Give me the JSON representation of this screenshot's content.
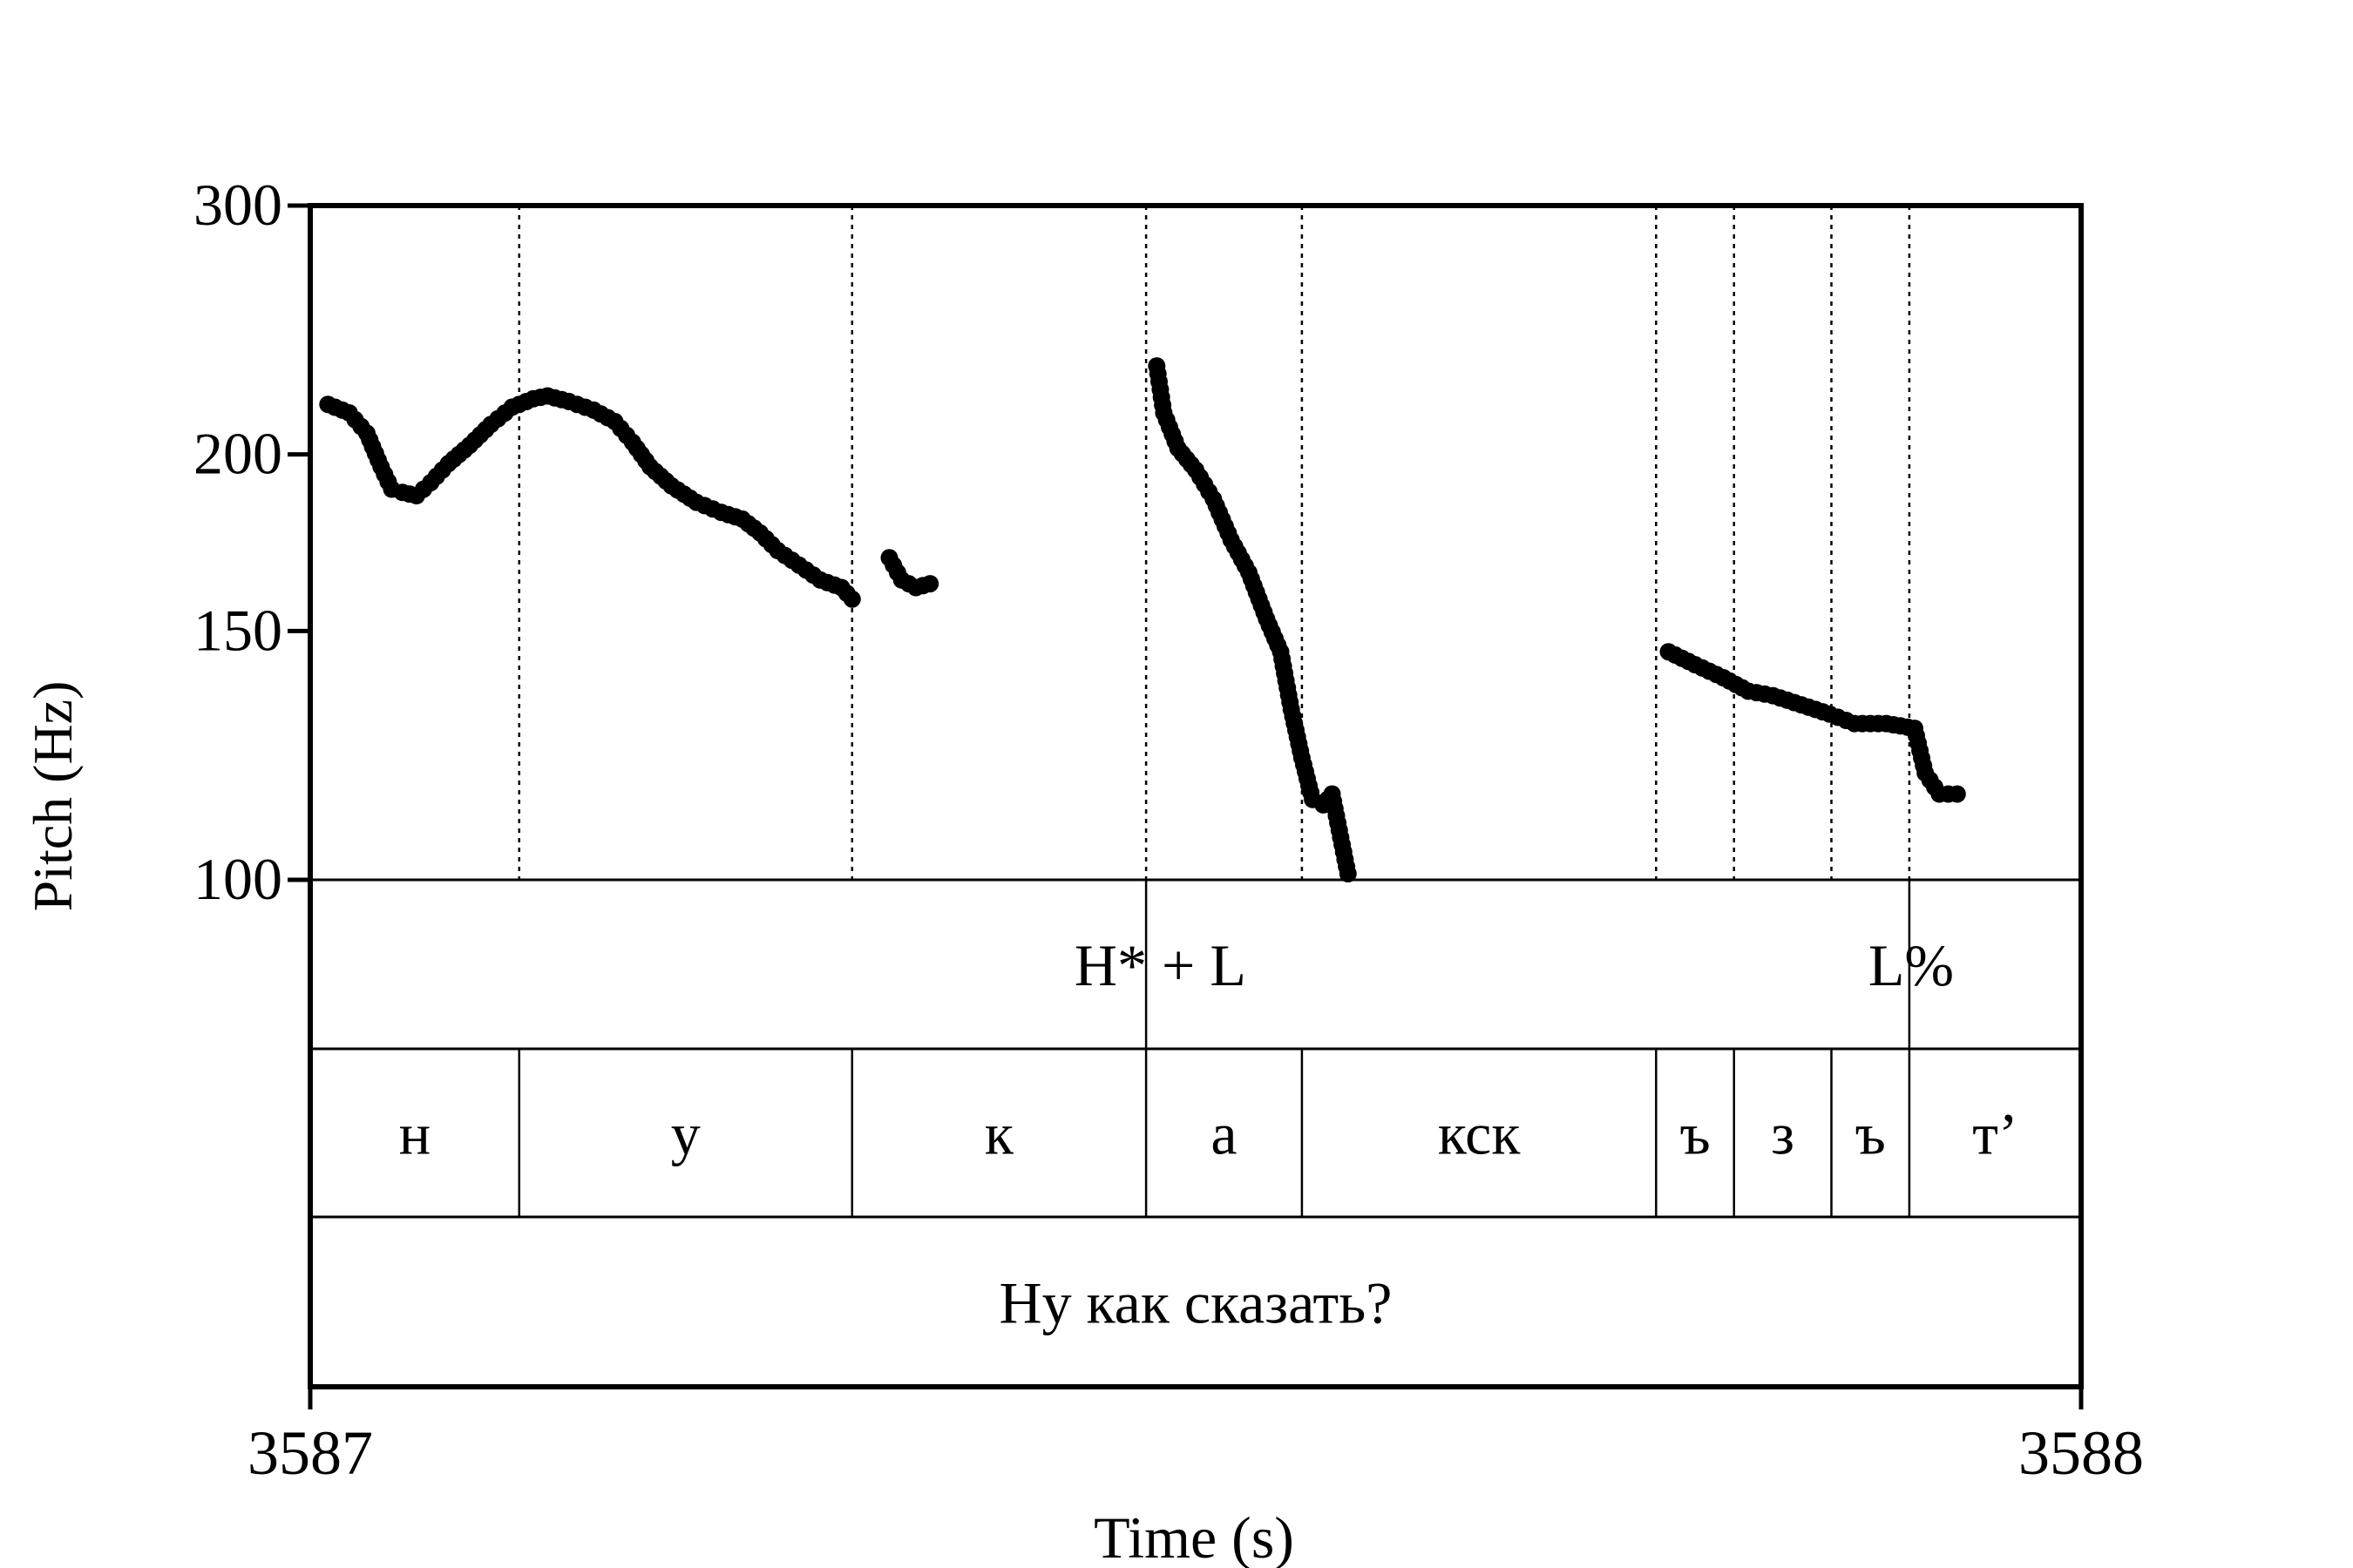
{
  "chart_data": {
    "type": "scatter",
    "title": "",
    "xlabel": "Time (s)",
    "ylabel": "Pitch (Hz)",
    "xlim": [
      3587,
      3588
    ],
    "ylim": [
      100,
      300
    ],
    "y_scale": "log",
    "x_ticks": [
      {
        "value": 3587,
        "label": "3587"
      },
      {
        "value": 3588,
        "label": "3588"
      }
    ],
    "y_ticks": [
      {
        "value": 100,
        "label": "100"
      },
      {
        "value": 150,
        "label": "150"
      },
      {
        "value": 200,
        "label": "200"
      },
      {
        "value": 300,
        "label": "300"
      }
    ],
    "grid": false,
    "marker_color": "#000000",
    "pitch_segments": [
      [
        [
          3587.01,
          217
        ],
        [
          3587.022,
          214
        ],
        [
          3587.032,
          207
        ],
        [
          3587.04,
          196
        ],
        [
          3587.046,
          189
        ],
        [
          3587.052,
          188
        ],
        [
          3587.06,
          187
        ],
        [
          3587.068,
          191
        ],
        [
          3587.078,
          197
        ],
        [
          3587.09,
          203
        ],
        [
          3587.102,
          210
        ],
        [
          3587.114,
          216
        ],
        [
          3587.126,
          219
        ],
        [
          3587.134,
          220
        ],
        [
          3587.146,
          218
        ],
        [
          3587.16,
          215
        ],
        [
          3587.172,
          211
        ],
        [
          3587.182,
          204
        ],
        [
          3587.192,
          196
        ],
        [
          3587.204,
          190
        ],
        [
          3587.218,
          185
        ],
        [
          3587.232,
          182
        ],
        [
          3587.244,
          180
        ],
        [
          3587.254,
          176
        ],
        [
          3587.264,
          171
        ],
        [
          3587.276,
          167
        ],
        [
          3587.288,
          163
        ],
        [
          3587.3,
          161
        ],
        [
          3587.306,
          158
        ]
      ],
      [
        [
          3587.327,
          169
        ],
        [
          3587.334,
          163
        ],
        [
          3587.342,
          161
        ],
        [
          3587.35,
          162
        ]
      ],
      [
        [
          3587.478,
          231
        ],
        [
          3587.482,
          214
        ],
        [
          3587.49,
          202
        ],
        [
          3587.5,
          195
        ],
        [
          3587.51,
          186
        ],
        [
          3587.52,
          174
        ],
        [
          3587.53,
          165
        ],
        [
          3587.54,
          153
        ],
        [
          3587.548,
          145
        ],
        [
          3587.554,
          132
        ],
        [
          3587.56,
          122
        ],
        [
          3587.566,
          114
        ],
        [
          3587.572,
          113
        ],
        [
          3587.577,
          115
        ],
        [
          3587.586,
          101
        ]
      ],
      [
        [
          3587.767,
          145
        ],
        [
          3587.782,
          142
        ],
        [
          3587.798,
          139
        ],
        [
          3587.812,
          136
        ],
        [
          3587.826,
          135
        ],
        [
          3587.842,
          133
        ],
        [
          3587.858,
          131
        ],
        [
          3587.872,
          129
        ],
        [
          3587.89,
          129
        ],
        [
          3587.906,
          128
        ],
        [
          3587.912,
          119
        ],
        [
          3587.92,
          115
        ],
        [
          3587.93,
          115
        ]
      ]
    ],
    "tones": {
      "boundaries": [
        3587.472,
        3587.903
      ],
      "labels": [
        {
          "x": 3587.48,
          "text": "H* + L"
        },
        {
          "x": 3587.904,
          "text": "L%"
        }
      ]
    },
    "phones": [
      {
        "start": 3587.0,
        "end": 3587.118,
        "text": "н"
      },
      {
        "start": 3587.118,
        "end": 3587.306,
        "text": "у"
      },
      {
        "start": 3587.306,
        "end": 3587.472,
        "text": "к"
      },
      {
        "start": 3587.472,
        "end": 3587.56,
        "text": "а"
      },
      {
        "start": 3587.56,
        "end": 3587.76,
        "text": "кск"
      },
      {
        "start": 3587.76,
        "end": 3587.804,
        "text": "ъ"
      },
      {
        "start": 3587.804,
        "end": 3587.859,
        "text": "з"
      },
      {
        "start": 3587.859,
        "end": 3587.903,
        "text": "ъ"
      },
      {
        "start": 3587.903,
        "end": 3588.0,
        "text": "т’"
      }
    ],
    "phrase": {
      "start": 3587.0,
      "end": 3588.0,
      "text": "Ну как сказать?"
    }
  }
}
